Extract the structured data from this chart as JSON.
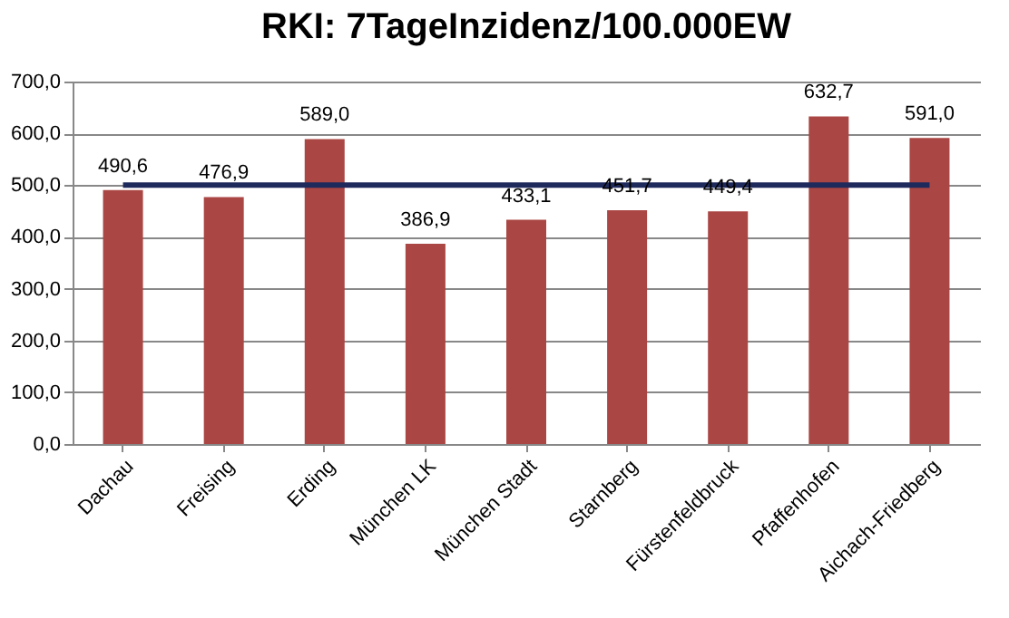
{
  "chart_data": {
    "type": "bar",
    "title": "RKI: 7TageInzidenz/100.000EW",
    "categories": [
      "Dachau",
      "Freising",
      "Erding",
      "München LK",
      "München Stadt",
      "Starnberg",
      "Fürstenfeldbruck",
      "Pfaffenhofen",
      "Aichach-Friedberg"
    ],
    "series": [
      {
        "color": "#aa4643",
        "values": [
          490.6,
          476.9,
          589.0,
          386.9,
          433.1,
          451.7,
          449.4,
          632.7,
          591.0
        ],
        "value_labels": [
          "490,6",
          "476,9",
          "589,0",
          "386,9",
          "433,1",
          "451,7",
          "449,4",
          "632,7",
          "591,0"
        ]
      },
      {
        "type": "line",
        "color": "#1f2a5c",
        "values": [
          500,
          500,
          500,
          500,
          500,
          500,
          500,
          500,
          500
        ]
      }
    ],
    "ylim": [
      0,
      700
    ],
    "yticks": [
      {
        "value": 0,
        "label": "0,0"
      },
      {
        "value": 100,
        "label": "100,0"
      },
      {
        "value": 200,
        "label": "200,0"
      },
      {
        "value": 300,
        "label": "300,0"
      },
      {
        "value": 400,
        "label": "400,0"
      },
      {
        "value": 500,
        "label": "500,0"
      },
      {
        "value": 600,
        "label": "600,0"
      },
      {
        "value": 700,
        "label": "700,0"
      }
    ],
    "grid": true,
    "marker": "none",
    "line_style": "solid"
  }
}
